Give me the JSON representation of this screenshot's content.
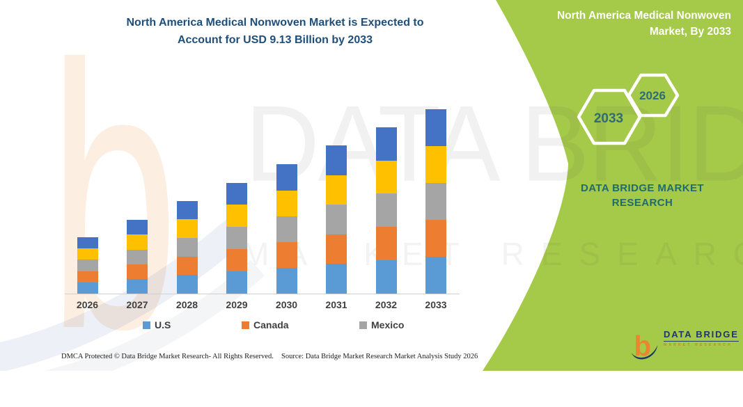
{
  "header": {
    "title_line1": "North America Medical Nonwoven Market is Expected to",
    "title_line2": "Account for USD 9.13 Billion by 2033"
  },
  "side_panel": {
    "heading_line1": "North America Medical Nonwoven",
    "heading_line2": "Market, By 2033",
    "hex_large_year": "2033",
    "hex_small_year": "2026",
    "brand_line1": "DATA BRIDGE MARKET",
    "brand_line2": "RESEARCH",
    "green_color": "#A5C948",
    "hex_text_color": "#2F6D72"
  },
  "watermark": {
    "big_text": "DATA BRIDGE",
    "sub_text": "MARKET RESEARCH"
  },
  "chart_data": {
    "type": "bar",
    "stacked": true,
    "title": "North America Medical Nonwoven Market is Expected to Account for USD 9.13 Billion by 2033",
    "unit": "USD Billion",
    "categories": [
      "2026",
      "2027",
      "2028",
      "2029",
      "2030",
      "2031",
      "2032",
      "2033"
    ],
    "series": [
      {
        "name": "U.S",
        "color": "#5B9BD5",
        "values": [
          0.56,
          0.73,
          0.92,
          1.1,
          1.28,
          1.47,
          1.65,
          1.83
        ]
      },
      {
        "name": "Canada",
        "color": "#ED7D31",
        "values": [
          0.56,
          0.73,
          0.92,
          1.1,
          1.28,
          1.47,
          1.65,
          1.83
        ]
      },
      {
        "name": "Mexico",
        "color": "#A5A5A5",
        "values": [
          0.56,
          0.73,
          0.92,
          1.1,
          1.28,
          1.47,
          1.65,
          1.83
        ]
      },
      {
        "name": "unlabeled-yellow-segment",
        "color": "#FFC000",
        "values": [
          0.56,
          0.73,
          0.92,
          1.1,
          1.28,
          1.47,
          1.65,
          1.83
        ]
      },
      {
        "name": "unlabeled-dark-blue-segment",
        "color": "#4472C4",
        "values": [
          0.56,
          0.73,
          0.92,
          1.1,
          1.28,
          1.47,
          1.65,
          1.83
        ]
      }
    ],
    "totals_usd_billion": [
      2.81,
      3.66,
      4.59,
      5.51,
      6.42,
      7.36,
      8.26,
      9.13
    ],
    "legend": [
      "U.S",
      "Canada",
      "Mexico"
    ],
    "legend_position": "bottom",
    "gridlines": false,
    "ylim": [
      0,
      9.5
    ]
  },
  "legend": [
    {
      "label": "U.S",
      "color": "#5B9BD5"
    },
    {
      "label": "Canada",
      "color": "#ED7D31"
    },
    {
      "label": "Mexico",
      "color": "#A5A5A5"
    }
  ],
  "footer": {
    "dmca": "DMCA Protected © Data Bridge Market Research-  All Rights Reserved.",
    "source": "Source: Data Bridge Market Research  Market Analysis Study 2026"
  },
  "logo": {
    "name": "DATA BRIDGE",
    "sub": "MARKET RESEARCH"
  }
}
